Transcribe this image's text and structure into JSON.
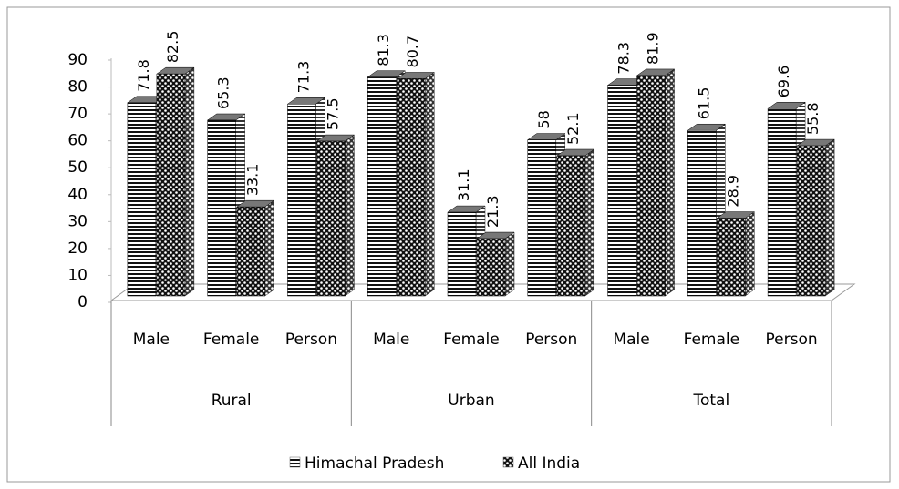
{
  "chart_data": {
    "type": "bar3d",
    "groups": [
      "Rural",
      "Urban",
      "Total"
    ],
    "categories": [
      "Male",
      "Female",
      "Person",
      "Male",
      "Female",
      "Person",
      "Male",
      "Female",
      "Person"
    ],
    "series": [
      {
        "name": "Himachal Pradesh",
        "color": "#000000",
        "pattern": "horizontal-lines",
        "values": [
          71.8,
          65.3,
          71.3,
          81.3,
          31.1,
          58,
          78.3,
          61.5,
          69.6
        ]
      },
      {
        "name": "All India",
        "color": "#000000",
        "pattern": "checker",
        "values": [
          82.5,
          33.1,
          57.5,
          80.7,
          21.3,
          52.1,
          81.9,
          28.9,
          55.8
        ]
      }
    ],
    "ylim": [
      0,
      90
    ],
    "yticks": [
      0,
      10,
      20,
      30,
      40,
      50,
      60,
      70,
      80,
      90
    ],
    "legend": "bottom"
  }
}
